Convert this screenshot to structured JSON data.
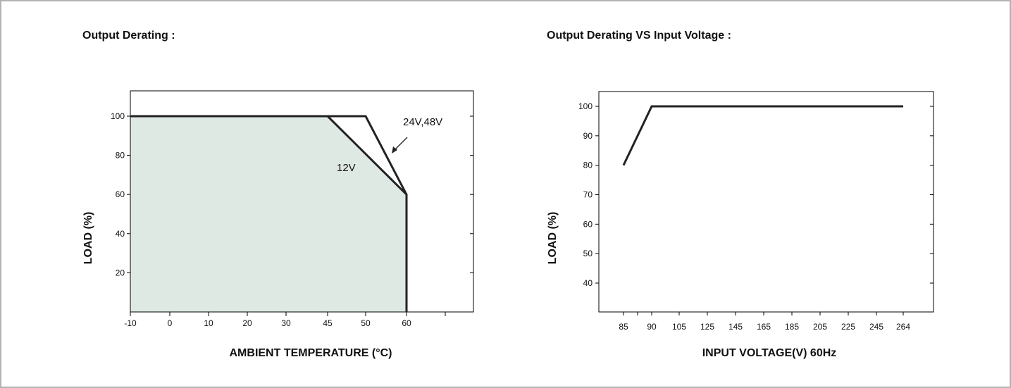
{
  "colors": {
    "frame_border": "#b3b3b3",
    "fill_area": "#dfe9e4",
    "line": "#222222",
    "text": "#111111"
  },
  "chart_data": [
    {
      "type": "line",
      "title": "Output Derating :",
      "xlabel": "AMBIENT TEMPERATURE (°C)",
      "ylabel": "LOAD (%)",
      "x_ticks": [
        "-10",
        "0",
        "10",
        "20",
        "30",
        "45",
        "50",
        "60"
      ],
      "y_ticks": [
        "20",
        "40",
        "60",
        "80",
        "100"
      ],
      "ylim": [
        0,
        100
      ],
      "series": [
        {
          "name": "24V,48V",
          "points": [
            {
              "x": "-10",
              "y": 100
            },
            {
              "x": "50",
              "y": 100
            },
            {
              "x": "60",
              "y": 60
            },
            {
              "x": "60",
              "y": 0
            }
          ]
        },
        {
          "name": "12V",
          "fill": true,
          "points": [
            {
              "x": "-10",
              "y": 100
            },
            {
              "x": "45",
              "y": 100
            },
            {
              "x": "60",
              "y": 60
            },
            {
              "x": "60",
              "y": 0
            }
          ]
        }
      ]
    },
    {
      "type": "line",
      "title": "Output Derating VS Input Voltage :",
      "xlabel": "INPUT VOLTAGE(V) 60Hz",
      "ylabel": "LOAD (%)",
      "x_ticks": [
        "85",
        "90",
        "105",
        "125",
        "145",
        "165",
        "185",
        "205",
        "225",
        "245",
        "264"
      ],
      "y_ticks": [
        "40",
        "50",
        "60",
        "70",
        "80",
        "90",
        "100"
      ],
      "ylim": [
        30,
        105
      ],
      "series": [
        {
          "points": [
            {
              "x": "85",
              "y": 80
            },
            {
              "x": "90",
              "y": 100
            },
            {
              "x": "264",
              "y": 100
            }
          ]
        }
      ]
    }
  ]
}
